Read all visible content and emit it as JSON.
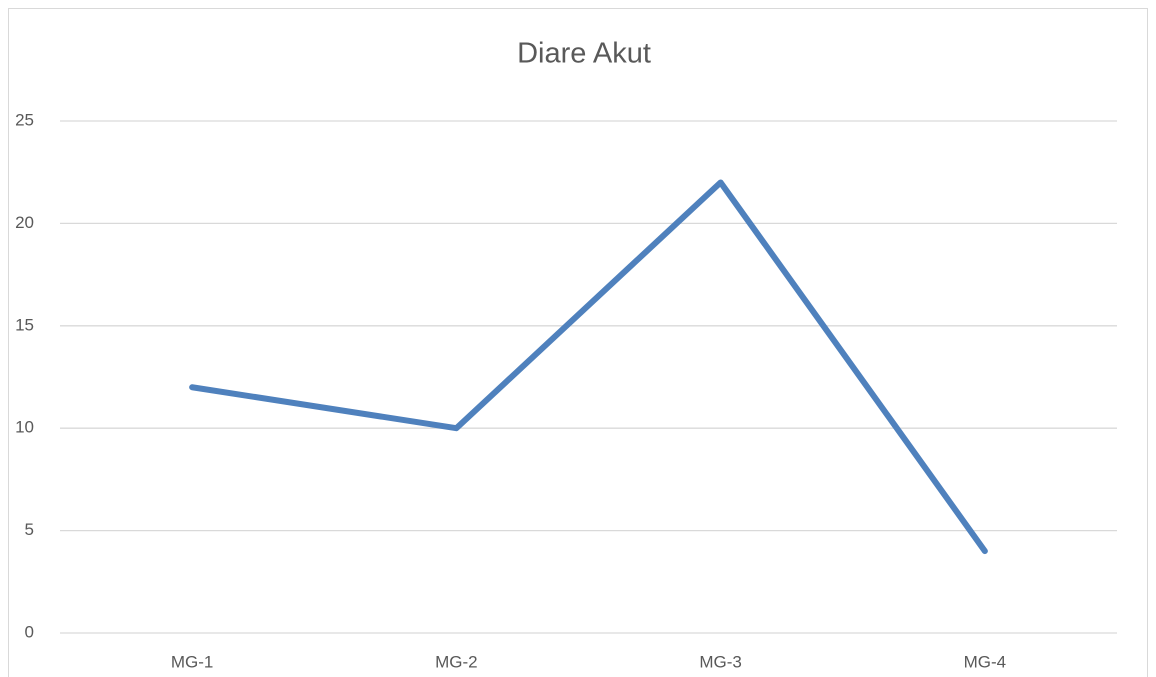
{
  "chart_data": {
    "type": "line",
    "title": "Diare Akut",
    "categories": [
      "MG-1",
      "MG-2",
      "MG-3",
      "MG-4"
    ],
    "series": [
      {
        "name": "Diare Akut",
        "color": "#4f81bd",
        "values": [
          12,
          10,
          22,
          4
        ]
      }
    ],
    "ylim": [
      0,
      25
    ],
    "yticks": [
      0,
      5,
      10,
      15,
      20,
      25
    ],
    "grid": true
  }
}
